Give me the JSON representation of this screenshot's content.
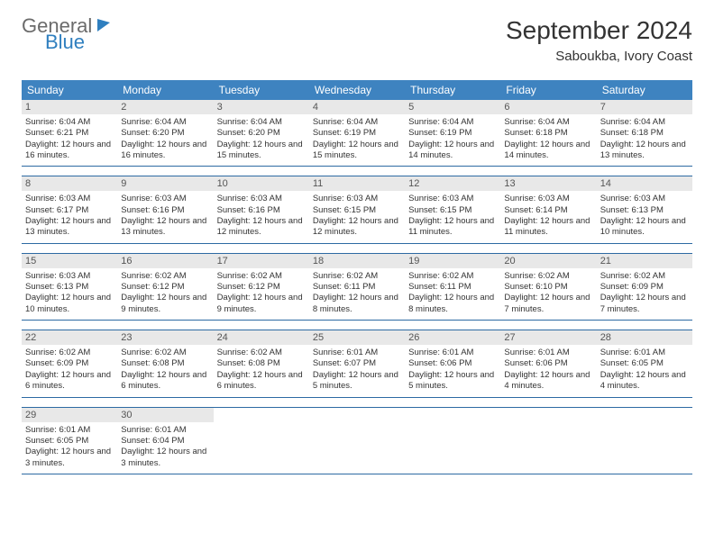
{
  "logo": {
    "general": "General",
    "blue": "Blue"
  },
  "title": "September 2024",
  "subtitle": "Saboukba, Ivory Coast",
  "weekdays": [
    "Sunday",
    "Monday",
    "Tuesday",
    "Wednesday",
    "Thursday",
    "Friday",
    "Saturday"
  ],
  "colors": {
    "header_bg": "#3e83c0",
    "week_border": "#2d6aa3",
    "daynum_bg": "#e8e8e8",
    "logo_blue": "#2f7fbf",
    "logo_gray": "#6b6b6b"
  },
  "typography": {
    "title_fontsize": 28,
    "subtitle_fontsize": 15,
    "weekday_fontsize": 12,
    "daynum_fontsize": 11,
    "daytext_fontsize": 9.5
  },
  "days": [
    {
      "n": "1",
      "sr": "6:04 AM",
      "ss": "6:21 PM",
      "dl": "12 hours and 16 minutes."
    },
    {
      "n": "2",
      "sr": "6:04 AM",
      "ss": "6:20 PM",
      "dl": "12 hours and 16 minutes."
    },
    {
      "n": "3",
      "sr": "6:04 AM",
      "ss": "6:20 PM",
      "dl": "12 hours and 15 minutes."
    },
    {
      "n": "4",
      "sr": "6:04 AM",
      "ss": "6:19 PM",
      "dl": "12 hours and 15 minutes."
    },
    {
      "n": "5",
      "sr": "6:04 AM",
      "ss": "6:19 PM",
      "dl": "12 hours and 14 minutes."
    },
    {
      "n": "6",
      "sr": "6:04 AM",
      "ss": "6:18 PM",
      "dl": "12 hours and 14 minutes."
    },
    {
      "n": "7",
      "sr": "6:04 AM",
      "ss": "6:18 PM",
      "dl": "12 hours and 13 minutes."
    },
    {
      "n": "8",
      "sr": "6:03 AM",
      "ss": "6:17 PM",
      "dl": "12 hours and 13 minutes."
    },
    {
      "n": "9",
      "sr": "6:03 AM",
      "ss": "6:16 PM",
      "dl": "12 hours and 13 minutes."
    },
    {
      "n": "10",
      "sr": "6:03 AM",
      "ss": "6:16 PM",
      "dl": "12 hours and 12 minutes."
    },
    {
      "n": "11",
      "sr": "6:03 AM",
      "ss": "6:15 PM",
      "dl": "12 hours and 12 minutes."
    },
    {
      "n": "12",
      "sr": "6:03 AM",
      "ss": "6:15 PM",
      "dl": "12 hours and 11 minutes."
    },
    {
      "n": "13",
      "sr": "6:03 AM",
      "ss": "6:14 PM",
      "dl": "12 hours and 11 minutes."
    },
    {
      "n": "14",
      "sr": "6:03 AM",
      "ss": "6:13 PM",
      "dl": "12 hours and 10 minutes."
    },
    {
      "n": "15",
      "sr": "6:03 AM",
      "ss": "6:13 PM",
      "dl": "12 hours and 10 minutes."
    },
    {
      "n": "16",
      "sr": "6:02 AM",
      "ss": "6:12 PM",
      "dl": "12 hours and 9 minutes."
    },
    {
      "n": "17",
      "sr": "6:02 AM",
      "ss": "6:12 PM",
      "dl": "12 hours and 9 minutes."
    },
    {
      "n": "18",
      "sr": "6:02 AM",
      "ss": "6:11 PM",
      "dl": "12 hours and 8 minutes."
    },
    {
      "n": "19",
      "sr": "6:02 AM",
      "ss": "6:11 PM",
      "dl": "12 hours and 8 minutes."
    },
    {
      "n": "20",
      "sr": "6:02 AM",
      "ss": "6:10 PM",
      "dl": "12 hours and 7 minutes."
    },
    {
      "n": "21",
      "sr": "6:02 AM",
      "ss": "6:09 PM",
      "dl": "12 hours and 7 minutes."
    },
    {
      "n": "22",
      "sr": "6:02 AM",
      "ss": "6:09 PM",
      "dl": "12 hours and 6 minutes."
    },
    {
      "n": "23",
      "sr": "6:02 AM",
      "ss": "6:08 PM",
      "dl": "12 hours and 6 minutes."
    },
    {
      "n": "24",
      "sr": "6:02 AM",
      "ss": "6:08 PM",
      "dl": "12 hours and 6 minutes."
    },
    {
      "n": "25",
      "sr": "6:01 AM",
      "ss": "6:07 PM",
      "dl": "12 hours and 5 minutes."
    },
    {
      "n": "26",
      "sr": "6:01 AM",
      "ss": "6:06 PM",
      "dl": "12 hours and 5 minutes."
    },
    {
      "n": "27",
      "sr": "6:01 AM",
      "ss": "6:06 PM",
      "dl": "12 hours and 4 minutes."
    },
    {
      "n": "28",
      "sr": "6:01 AM",
      "ss": "6:05 PM",
      "dl": "12 hours and 4 minutes."
    },
    {
      "n": "29",
      "sr": "6:01 AM",
      "ss": "6:05 PM",
      "dl": "12 hours and 3 minutes."
    },
    {
      "n": "30",
      "sr": "6:01 AM",
      "ss": "6:04 PM",
      "dl": "12 hours and 3 minutes."
    }
  ],
  "labels": {
    "sunrise": "Sunrise:",
    "sunset": "Sunset:",
    "daylight": "Daylight:"
  }
}
